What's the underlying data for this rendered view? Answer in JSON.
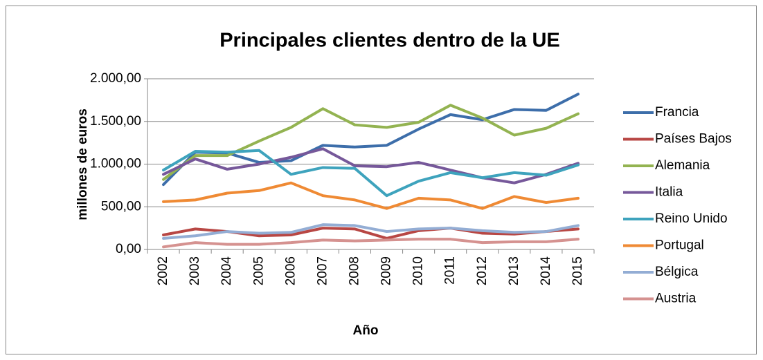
{
  "chart_data": {
    "type": "line",
    "title": "Principales clientes dentro de la UE",
    "x_label": "Año",
    "y_label": "millones de euros",
    "categories": [
      "2002",
      "2003",
      "2004",
      "2005",
      "2006",
      "2007",
      "2008",
      "2009",
      "2010",
      "2011",
      "2012",
      "2013",
      "2014",
      "2015"
    ],
    "ylim": [
      0,
      2000
    ],
    "yticks": [
      {
        "value": 0,
        "label": "0,00"
      },
      {
        "value": 500,
        "label": "500,00"
      },
      {
        "value": 1000,
        "label": "1.000,00"
      },
      {
        "value": 1500,
        "label": "1.500,00"
      },
      {
        "value": 2000,
        "label": "2.000,00"
      }
    ],
    "grid": true,
    "legend": "right",
    "series": [
      {
        "name": "Francia",
        "color": "#3d6eaa",
        "values": [
          760,
          1140,
          1130,
          1020,
          1040,
          1220,
          1200,
          1220,
          1410,
          1580,
          1520,
          1640,
          1630,
          1820
        ]
      },
      {
        "name": "Países Bajos",
        "color": "#b84744",
        "values": [
          170,
          240,
          210,
          160,
          170,
          250,
          240,
          130,
          220,
          250,
          190,
          180,
          210,
          240
        ]
      },
      {
        "name": "Alemania",
        "color": "#93b351",
        "values": [
          820,
          1100,
          1100,
          1270,
          1430,
          1650,
          1460,
          1430,
          1490,
          1690,
          1540,
          1340,
          1420,
          1590
        ]
      },
      {
        "name": "Italia",
        "color": "#76589a",
        "values": [
          880,
          1060,
          940,
          1000,
          1080,
          1180,
          980,
          970,
          1020,
          930,
          840,
          780,
          880,
          1010
        ]
      },
      {
        "name": "Reino Unido",
        "color": "#3ea3bd",
        "values": [
          930,
          1150,
          1140,
          1160,
          880,
          960,
          950,
          630,
          800,
          900,
          840,
          900,
          870,
          990
        ]
      },
      {
        "name": "Portugal",
        "color": "#ef8a34",
        "values": [
          560,
          580,
          660,
          690,
          780,
          630,
          580,
          480,
          600,
          580,
          480,
          620,
          550,
          600
        ]
      },
      {
        "name": "Bélgica",
        "color": "#93add4",
        "values": [
          130,
          160,
          210,
          190,
          200,
          290,
          280,
          210,
          240,
          250,
          220,
          200,
          210,
          280
        ]
      },
      {
        "name": "Austria",
        "color": "#d59290",
        "values": [
          30,
          80,
          60,
          60,
          80,
          110,
          100,
          110,
          120,
          120,
          80,
          90,
          90,
          120
        ]
      }
    ]
  }
}
